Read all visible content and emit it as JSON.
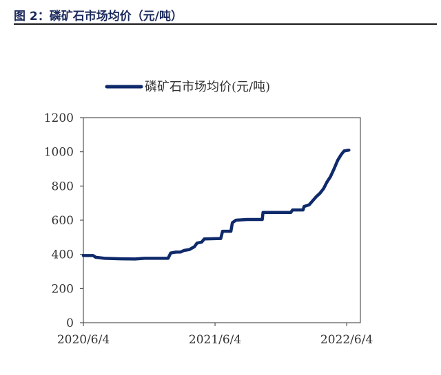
{
  "figure": {
    "title": "图 2：磷矿石市场均价（元/吨）"
  },
  "colors": {
    "series": "#0f2a6b",
    "axis": "#333333",
    "header_text": "#1b2a5c"
  },
  "chart_data": {
    "type": "line",
    "title": "",
    "xlabel": "",
    "ylabel": "",
    "ylim": [
      0,
      1200
    ],
    "yticks": [
      0,
      200,
      400,
      600,
      800,
      1000,
      1200
    ],
    "xticks": [
      "2020/6/4",
      "2021/6/4",
      "2022/6/4"
    ],
    "grid": false,
    "legend_position": "top-center",
    "series": [
      {
        "name": "磷矿石市场均价(元/吨)",
        "color": "#0f2a6b",
        "points": [
          [
            "2020-06-04",
            393
          ],
          [
            "2020-07-01",
            393
          ],
          [
            "2020-07-08",
            383
          ],
          [
            "2020-08-01",
            377
          ],
          [
            "2020-09-15",
            374
          ],
          [
            "2020-10-25",
            373
          ],
          [
            "2020-11-20",
            377
          ],
          [
            "2021-01-25",
            377
          ],
          [
            "2021-02-01",
            408
          ],
          [
            "2021-02-15",
            413
          ],
          [
            "2021-03-01",
            414
          ],
          [
            "2021-03-10",
            423
          ],
          [
            "2021-03-25",
            428
          ],
          [
            "2021-04-08",
            445
          ],
          [
            "2021-04-15",
            466
          ],
          [
            "2021-04-28",
            472
          ],
          [
            "2021-05-05",
            490
          ],
          [
            "2021-06-10",
            492
          ],
          [
            "2021-06-20",
            493
          ],
          [
            "2021-06-25",
            535
          ],
          [
            "2021-07-18",
            535
          ],
          [
            "2021-07-22",
            585
          ],
          [
            "2021-08-01",
            600
          ],
          [
            "2021-09-01",
            604
          ],
          [
            "2021-10-13",
            604
          ],
          [
            "2021-10-15",
            645
          ],
          [
            "2021-12-31",
            645
          ],
          [
            "2022-01-05",
            660
          ],
          [
            "2022-02-03",
            660
          ],
          [
            "2022-02-06",
            680
          ],
          [
            "2022-02-20",
            690
          ],
          [
            "2022-03-01",
            712
          ],
          [
            "2022-03-12",
            738
          ],
          [
            "2022-03-22",
            758
          ],
          [
            "2022-04-01",
            785
          ],
          [
            "2022-04-10",
            822
          ],
          [
            "2022-04-20",
            855
          ],
          [
            "2022-05-01",
            905
          ],
          [
            "2022-05-10",
            950
          ],
          [
            "2022-05-20",
            985
          ],
          [
            "2022-05-28",
            1005
          ],
          [
            "2022-06-10",
            1010
          ]
        ]
      }
    ]
  }
}
